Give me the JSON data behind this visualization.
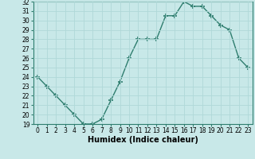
{
  "x": [
    0,
    1,
    2,
    3,
    4,
    5,
    6,
    7,
    8,
    9,
    10,
    11,
    12,
    13,
    14,
    15,
    16,
    17,
    18,
    19,
    20,
    21,
    22,
    23
  ],
  "y": [
    24,
    23,
    22,
    21,
    20,
    19,
    19,
    19.5,
    21.5,
    23.5,
    26,
    28,
    28,
    28,
    30.5,
    30.5,
    32,
    31.5,
    31.5,
    30.5,
    29.5,
    29,
    26,
    25
  ],
  "line_color": "#2e7d6e",
  "marker": "+",
  "marker_size": 4,
  "marker_lw": 1.2,
  "bg_color": "#c8e8e8",
  "grid_color": "#b0d8d8",
  "xlabel": "Humidex (Indice chaleur)",
  "ylim": [
    19,
    32
  ],
  "xlim": [
    -0.5,
    23.5
  ],
  "yticks": [
    19,
    20,
    21,
    22,
    23,
    24,
    25,
    26,
    27,
    28,
    29,
    30,
    31,
    32
  ],
  "xticks": [
    0,
    1,
    2,
    3,
    4,
    5,
    6,
    7,
    8,
    9,
    10,
    11,
    12,
    13,
    14,
    15,
    16,
    17,
    18,
    19,
    20,
    21,
    22,
    23
  ],
  "tick_fontsize": 5.5,
  "xlabel_fontsize": 7,
  "line_width": 1.0
}
